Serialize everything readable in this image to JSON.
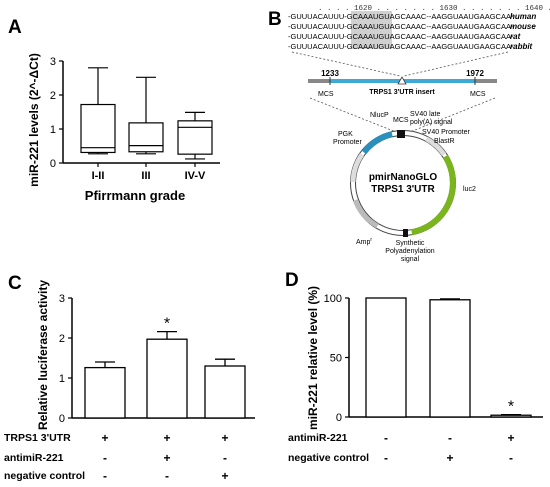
{
  "panels": {
    "a": "A",
    "b": "B",
    "c": "C",
    "d": "D"
  },
  "chart_data": [
    {
      "panel": "A",
      "type": "boxplot",
      "ylabel": "miR-221 levels (2^-ΔCt)",
      "xlabel": "Pfirrmann grade",
      "ylim": [
        0,
        3
      ],
      "yticks": [
        0,
        1,
        2,
        3
      ],
      "grid": false,
      "categories": [
        "I-II",
        "III",
        "IV-V"
      ],
      "boxes": [
        {
          "min": 0.27,
          "q1": 0.31,
          "median": 0.45,
          "q3": 1.72,
          "max": 2.8
        },
        {
          "min": 0.27,
          "q1": 0.33,
          "median": 0.51,
          "q3": 1.18,
          "max": 2.52
        },
        {
          "min": 0.12,
          "q1": 0.26,
          "median": 1.05,
          "q3": 1.24,
          "max": 1.49
        }
      ]
    },
    {
      "panel": "C",
      "type": "bar",
      "ylabel": "Relative luciferase activity",
      "ylim": [
        0,
        3
      ],
      "yticks": [
        0,
        1,
        2,
        3
      ],
      "grid": false,
      "values": [
        1.26,
        1.97,
        1.3
      ],
      "errors": [
        0.14,
        0.19,
        0.17
      ],
      "significance": [
        "",
        "*",
        ""
      ],
      "conditions": [
        {
          "label": "TRPS1 3'UTR",
          "signs": [
            "+",
            "+",
            "+"
          ]
        },
        {
          "label": "antimiR-221",
          "signs": [
            "-",
            "+",
            "-"
          ]
        },
        {
          "label": "negative control",
          "signs": [
            "-",
            "-",
            "+"
          ]
        }
      ]
    },
    {
      "panel": "D",
      "type": "bar",
      "ylabel": "miR-221 relative level (%)",
      "ylim": [
        0,
        100
      ],
      "yticks": [
        0,
        50,
        100
      ],
      "grid": false,
      "values": [
        100,
        98.5,
        1.5
      ],
      "errors": [
        0,
        0.7,
        0.5
      ],
      "significance": [
        "",
        "",
        "*"
      ],
      "conditions": [
        {
          "label": "antimiR-221",
          "signs": [
            "-",
            "-",
            "+"
          ]
        },
        {
          "label": "negative control",
          "signs": [
            "-",
            "+",
            "-"
          ]
        }
      ]
    }
  ],
  "diagram_b": {
    "ruler": ". . . . 1620 . . . . . . . 1630 . . . . . . . 1640 . . . . . . . 1650 . . . . .",
    "sequences": [
      {
        "seq": "-GUUUACAUUU-GCAAAUGUAGCAAAC--AAGGUAAUGAAGCAA-",
        "species": "human"
      },
      {
        "seq": "-GUUUACAUUU-GCAAAUGUAGCAAAC--AAGGUAAUGAAGCAA-",
        "species": "mouse"
      },
      {
        "seq": "-GUUUACAUUU-GCAAAUGUAGCAAAC--AAGGUAAUGAAGCAA-",
        "species": "rat"
      },
      {
        "seq": "-GUUUACAUUU-GCAAAUGUAGCAAAC--AAGGUAAUGAAGCAA-",
        "species": "rabbit"
      }
    ],
    "insert_start": "1233",
    "insert_end": "1972",
    "insert_label": "TRPS1 3'UTR insert",
    "mcs_left": "MCS",
    "mcs_right": "MCS",
    "plasmid_name": "pmirNanoGLO",
    "plasmid_subtitle": "TRPS1 3'UTR",
    "features": {
      "nlucp": "NlucP",
      "mcs": "MCS",
      "sv40_late_1": "SV40 late",
      "sv40_late_2": "poly(A) signal",
      "sv40_promoter": "SV40 Promoter",
      "blastr": "BlastR",
      "pgk_1": "PGK",
      "pgk_2": "Promoter",
      "luc2": "luc2",
      "ampr": "Amp",
      "ampr_sup": "r",
      "synthetic_1": "Synthetic",
      "synthetic_2": "Polyadenylation",
      "synthetic_3": "signal"
    },
    "colors": {
      "luc2": "#7ab51d",
      "nlucp": "#2a8fbd",
      "bar_left": "#888888",
      "bar_mid": "#3fa9d6",
      "highlight": "#d0d0d0"
    }
  }
}
